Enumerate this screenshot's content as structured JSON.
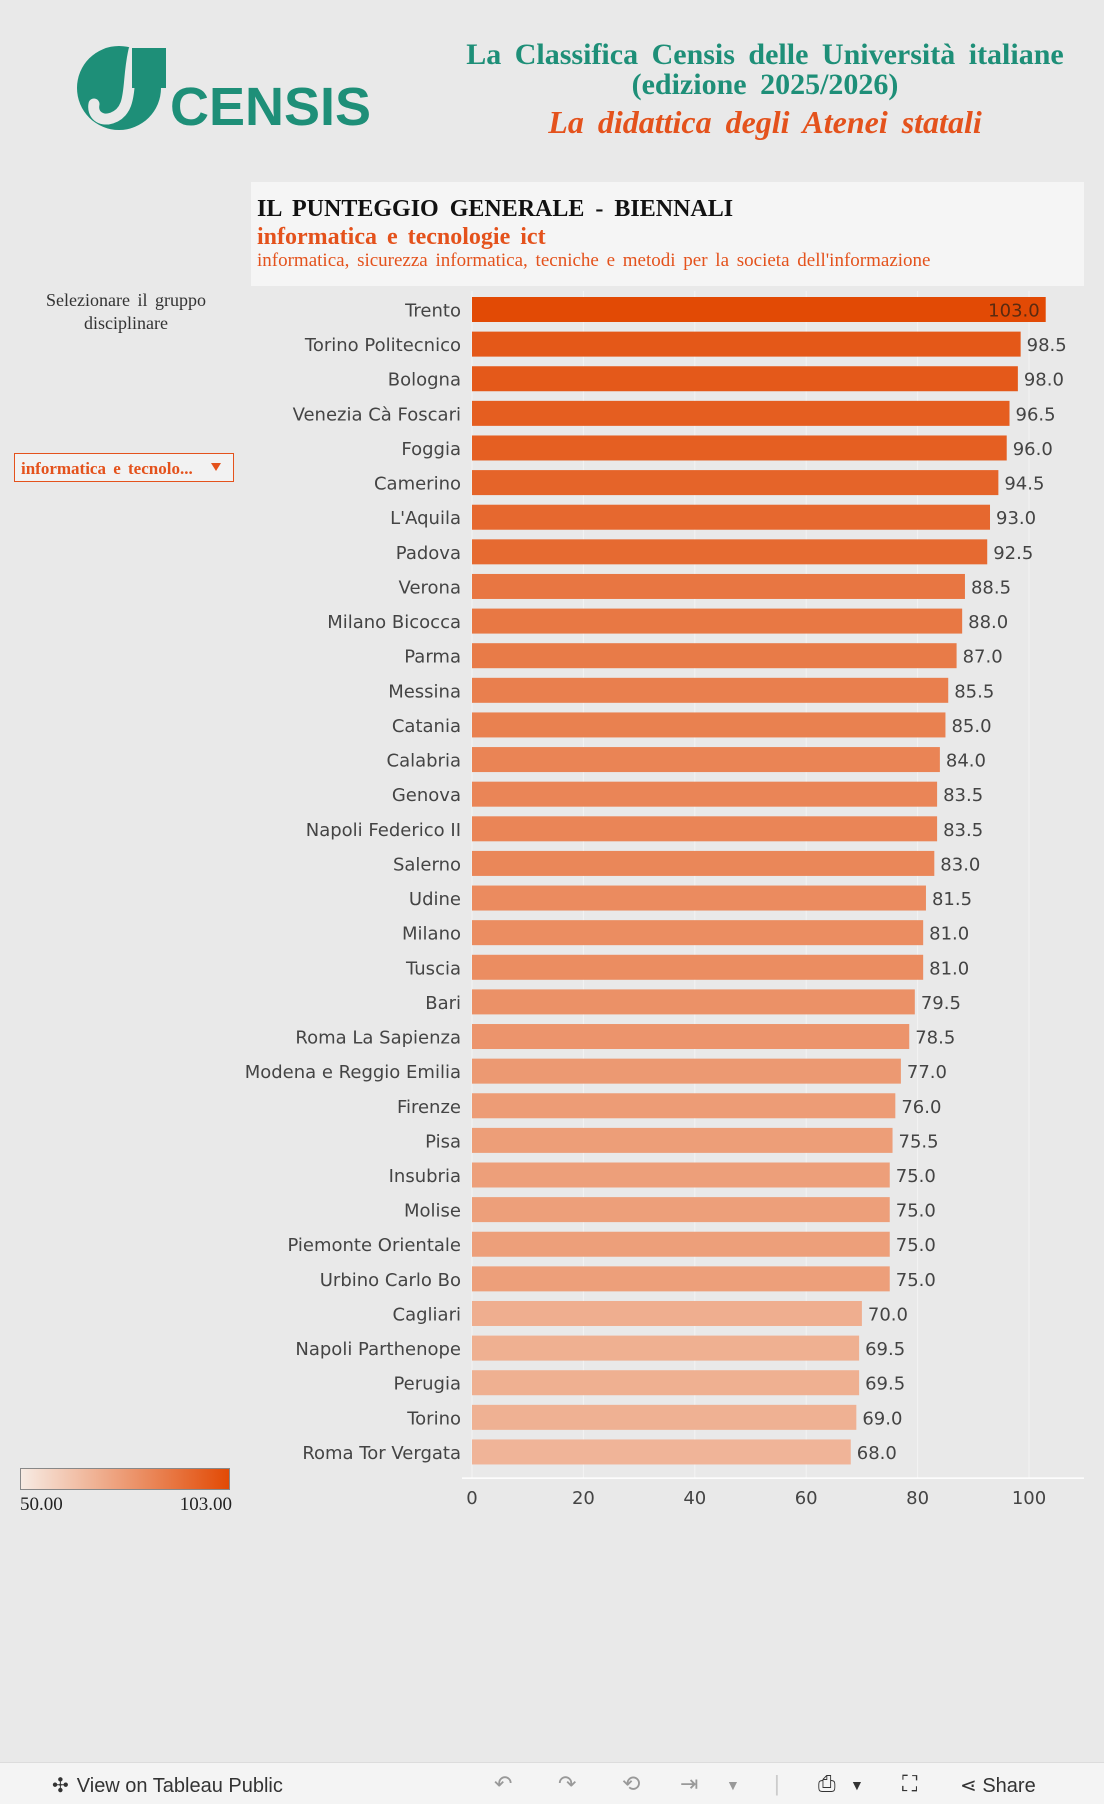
{
  "header": {
    "logo_text": "CENSIS",
    "title_line1": "La Classifica Censis delle Università italiane",
    "title_line2": "(edizione 2025/2026)",
    "subtitle": "La didattica degli Atenei statali"
  },
  "panel": {
    "heading": "IL PUNTEGGIO GENERALE - BIENNALI",
    "group": "informatica e tecnologie ict",
    "description": "informatica, sicurezza informatica, tecniche e metodi per la societa dell'informazione"
  },
  "filter": {
    "label": "Selezionare il gruppo disciplinare",
    "selected": "informatica e tecnolo..."
  },
  "legend": {
    "min_label": "50.00",
    "max_label": "103.00",
    "color_low": "#f7ebe3",
    "color_high": "#e24a05"
  },
  "chart_data": {
    "type": "bar",
    "orientation": "horizontal",
    "categories": [
      "Trento",
      "Torino Politecnico",
      "Bologna",
      "Venezia Cà Foscari",
      "Foggia",
      "Camerino",
      "L'Aquila",
      "Padova",
      "Verona",
      "Milano Bicocca",
      "Parma",
      "Messina",
      "Catania",
      "Calabria",
      "Genova",
      "Napoli Federico II",
      "Salerno",
      "Udine",
      "Milano",
      "Tuscia",
      "Bari",
      "Roma La Sapienza",
      "Modena e Reggio Emilia",
      "Firenze",
      "Pisa",
      "Insubria",
      "Molise",
      "Piemonte Orientale",
      "Urbino Carlo Bo",
      "Cagliari",
      "Napoli Parthenope",
      "Perugia",
      "Torino",
      "Roma Tor Vergata"
    ],
    "values": [
      103.0,
      98.5,
      98.0,
      96.5,
      96.0,
      94.5,
      93.0,
      92.5,
      88.5,
      88.0,
      87.0,
      85.5,
      85.0,
      84.0,
      83.5,
      83.5,
      83.0,
      81.5,
      81.0,
      81.0,
      79.5,
      78.5,
      77.0,
      76.0,
      75.5,
      75.0,
      75.0,
      75.0,
      75.0,
      70.0,
      69.5,
      69.5,
      69.0,
      68.0
    ],
    "value_labels": [
      "103.0",
      "98.5",
      "98.0",
      "96.5",
      "96.0",
      "94.5",
      "93.0",
      "92.5",
      "88.5",
      "88.0",
      "87.0",
      "85.5",
      "85.0",
      "84.0",
      "83.5",
      "83.5",
      "83.0",
      "81.5",
      "81.0",
      "81.0",
      "79.5",
      "78.5",
      "77.0",
      "76.0",
      "75.5",
      "75.0",
      "75.0",
      "75.0",
      "75.0",
      "70.0",
      "69.5",
      "69.5",
      "69.0",
      "68.0"
    ],
    "x_ticks": [
      0,
      20,
      40,
      60,
      80,
      100
    ],
    "x_tick_labels": [
      "0",
      "20",
      "40",
      "60",
      "80",
      "100"
    ],
    "xlim": [
      0,
      110
    ],
    "color_range": [
      50,
      103
    ],
    "grid": true
  },
  "toolbar": {
    "view_label": "View on Tableau Public",
    "share_label": "Share"
  }
}
